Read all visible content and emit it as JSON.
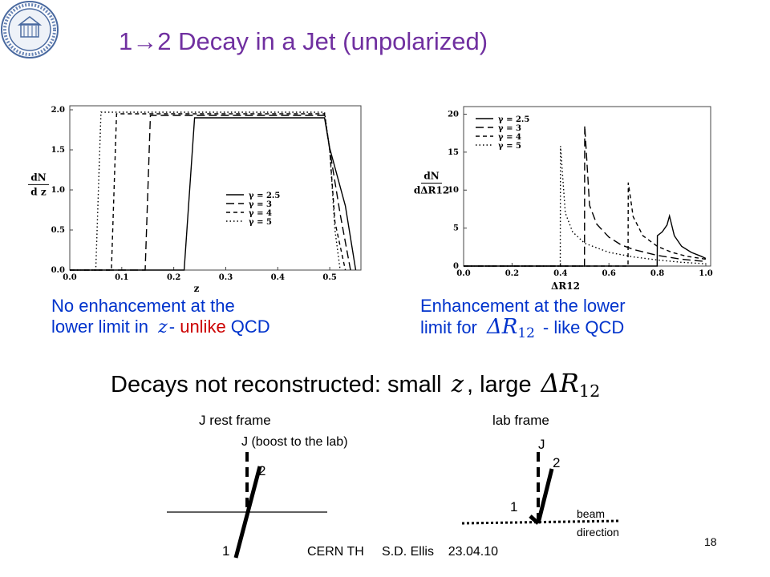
{
  "slide": {
    "title": "1→2 Decay in a Jet (unpolarized)",
    "left_caption": {
      "line1": "No enhancement at the",
      "line2_a": "lower limit in",
      "line2_var": "z",
      "line2_b": "- ",
      "line2_red": "unlike",
      "line2_c": " QCD"
    },
    "right_caption": {
      "line1": "Enhancement at the lower",
      "line2_a": "limit for",
      "line2_var": "ΔR",
      "line2_var_sub": "12",
      "line2_b": "- like QCD"
    },
    "summary": {
      "a": "Decays not reconstructed: small",
      "var1": "z",
      "b": ", large",
      "var2": "ΔR",
      "var2_sub": "12"
    },
    "diagram_left": {
      "title": "J rest frame",
      "boost_label": "J (boost to the lab)",
      "label_2": "2",
      "label_1": "1"
    },
    "diagram_right": {
      "title": "lab frame",
      "label_j": "J",
      "label_2": "2",
      "label_1": "1",
      "beam_label_1": "beam",
      "beam_label_2": "direction"
    },
    "footer": "CERN TH     S.D. Ellis    23.04.10",
    "page_number": "18"
  },
  "chart_data": [
    {
      "type": "line",
      "xlabel": "z",
      "ylabel_num": "dN",
      "ylabel_den": "d z",
      "xlim": [
        0.0,
        0.56
      ],
      "ylim": [
        0.0,
        2.05
      ],
      "xticks": [
        "0.0",
        "0.1",
        "0.2",
        "0.3",
        "0.4",
        "0.5"
      ],
      "yticks": [
        "0.0",
        "0.5",
        "1.0",
        "1.5",
        "2.0"
      ],
      "legend": "lower-right",
      "series": [
        {
          "name": "γ = 2.5",
          "dash": "solid",
          "x": [
            0.0,
            0.22,
            0.24,
            0.49,
            0.5,
            0.53,
            0.55
          ],
          "y": [
            0,
            0,
            1.9,
            1.9,
            1.52,
            0.8,
            0.0
          ]
        },
        {
          "name": "γ = 3",
          "dash": "longdash",
          "x": [
            0.0,
            0.145,
            0.155,
            0.49,
            0.5,
            0.52,
            0.54
          ],
          "y": [
            0,
            0,
            1.93,
            1.93,
            1.5,
            0.7,
            0.0
          ]
        },
        {
          "name": "γ = 4",
          "dash": "dash",
          "x": [
            0.0,
            0.08,
            0.09,
            0.49,
            0.5,
            0.51,
            0.53
          ],
          "y": [
            0,
            0,
            1.95,
            1.95,
            1.5,
            0.6,
            0.0
          ]
        },
        {
          "name": "γ = 5",
          "dash": "dot",
          "x": [
            0.0,
            0.05,
            0.06,
            0.49,
            0.5,
            0.51,
            0.52
          ],
          "y": [
            0,
            0,
            1.97,
            1.97,
            1.5,
            0.5,
            0.0
          ]
        }
      ]
    },
    {
      "type": "line",
      "xlabel": "ΔR12",
      "ylabel_num": "dN",
      "ylabel_den": "dΔR12",
      "xlim": [
        0.0,
        1.02
      ],
      "ylim": [
        0,
        21
      ],
      "xticks": [
        "0.0",
        "0.2",
        "0.4",
        "0.6",
        "0.8",
        "1.0"
      ],
      "yticks": [
        "0",
        "5",
        "10",
        "15",
        "20"
      ],
      "legend": "top-left",
      "series": [
        {
          "name": "γ = 2.5",
          "dash": "solid",
          "x": [
            0.0,
            0.799,
            0.8,
            0.82,
            0.84,
            0.85,
            0.87,
            0.9,
            0.94,
            0.98,
            1.0
          ],
          "y": [
            0,
            0,
            4.0,
            4.5,
            5.4,
            6.6,
            4.0,
            2.6,
            1.8,
            1.3,
            1.0
          ]
        },
        {
          "name": "γ = 3",
          "dash": "longdash",
          "x": [
            0.0,
            0.499,
            0.5,
            0.52,
            0.55,
            0.6,
            0.65,
            0.7,
            0.8,
            0.9,
            1.0
          ],
          "y": [
            0,
            0,
            18.5,
            8.0,
            5.5,
            3.8,
            2.8,
            2.2,
            1.4,
            0.9,
            0.6
          ]
        },
        {
          "name": "γ = 4",
          "dash": "dash",
          "x": [
            0.0,
            0.679,
            0.68,
            0.7,
            0.74,
            0.8,
            0.86,
            0.92,
            1.0
          ],
          "y": [
            0,
            0,
            11.0,
            6.5,
            4.0,
            2.6,
            1.8,
            1.3,
            0.9
          ]
        },
        {
          "name": "γ = 5",
          "dash": "dot",
          "x": [
            0.0,
            0.399,
            0.4,
            0.42,
            0.45,
            0.5,
            0.6,
            0.7,
            0.8,
            0.9,
            1.0
          ],
          "y": [
            0,
            0,
            15.8,
            7.0,
            4.5,
            3.0,
            1.8,
            1.2,
            0.8,
            0.5,
            0.3
          ]
        }
      ]
    }
  ]
}
